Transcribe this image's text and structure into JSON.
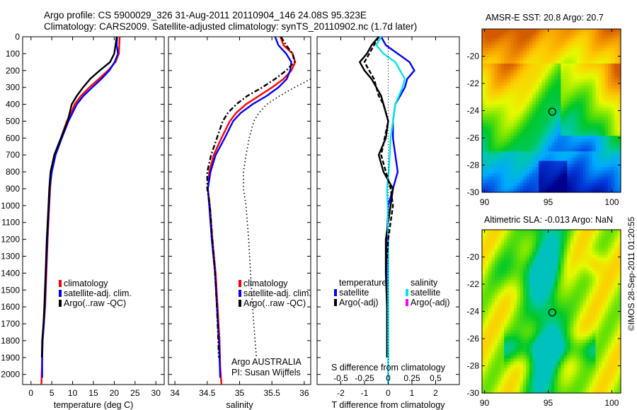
{
  "header": {
    "line1": "Argo profile: CS 5900029_326 31-Aug-2011 20110904_146 24.08S 95.323E",
    "line2": "Climatology: CARS2009. Satellite-adjusted climatology: synTS_20110902.nc (1.7d later)"
  },
  "credit": "©IMOS 28-Sep-2011 01:20:55",
  "colors": {
    "climatology": "#ff0000",
    "satellite": "#0000ff",
    "argo": "#000000",
    "sal_satellite": "#00e5ee",
    "sal_argo": "#ff00ff"
  },
  "chart_data": [
    {
      "type": "line",
      "name": "temperature-profile",
      "xlabel": "temperature (deg C)",
      "ylabel": "",
      "xlim": [
        -2,
        32
      ],
      "ylim": [
        2060,
        0
      ],
      "xticks": [
        0,
        5,
        10,
        15,
        20,
        25,
        30
      ],
      "yticks": [
        0,
        100,
        200,
        300,
        400,
        500,
        600,
        700,
        800,
        900,
        1000,
        1100,
        1200,
        1300,
        1400,
        1500,
        1600,
        1700,
        1800,
        1900,
        2000
      ],
      "legend": {
        "position": "center",
        "entries": [
          "climatology",
          "satellite-adj. clim.",
          "Argo(..raw -QC)"
        ]
      },
      "series": [
        {
          "name": "climatology",
          "color": "climatology",
          "style": "solid",
          "x": [
            21.3,
            21.2,
            21.1,
            20.3,
            18.5,
            16.3,
            14.0,
            12.0,
            10.5,
            9.7,
            8.6,
            7.2,
            5.6,
            4.9,
            4.6,
            4.4,
            4.0,
            3.7,
            3.4,
            3.1,
            2.8,
            2.7,
            2.5
          ],
          "y": [
            0,
            50,
            100,
            150,
            200,
            250,
            300,
            350,
            400,
            450,
            500,
            600,
            700,
            800,
            900,
            1000,
            1200,
            1400,
            1600,
            1700,
            1800,
            1900,
            2060
          ]
        },
        {
          "name": "satellite-adj. clim.",
          "color": "satellite",
          "style": "solid",
          "x": [
            20.7,
            20.6,
            20.9,
            20.1,
            18.8,
            16.9,
            14.7,
            12.6,
            11.0,
            10.0,
            9.0,
            7.4,
            5.9,
            5.0,
            4.5,
            4.3,
            3.9,
            3.6,
            3.3,
            3.1,
            2.8,
            2.7,
            2.7
          ],
          "y": [
            0,
            50,
            100,
            150,
            200,
            250,
            300,
            350,
            400,
            450,
            500,
            600,
            700,
            800,
            900,
            1000,
            1200,
            1400,
            1600,
            1700,
            1800,
            1900,
            2020
          ]
        },
        {
          "name": "Argo(..raw -QC)",
          "color": "argo",
          "style": "solid",
          "x": [
            20.6,
            20.3,
            20.0,
            19.0,
            16.5,
            14.2,
            12.5,
            11.0,
            9.8,
            9.3,
            8.8,
            7.2,
            5.6,
            4.7,
            4.4,
            4.2,
            3.8,
            3.5,
            3.2,
            3.0,
            2.7,
            2.6
          ],
          "y": [
            0,
            50,
            100,
            150,
            200,
            250,
            300,
            350,
            400,
            450,
            500,
            600,
            700,
            800,
            900,
            1000,
            1200,
            1400,
            1600,
            1700,
            1800,
            1900
          ]
        }
      ]
    },
    {
      "type": "line",
      "name": "salinity-profile",
      "xlabel": "salinity",
      "xlim": [
        33.9,
        36.1
      ],
      "ylim": [
        2060,
        0
      ],
      "xticks": [
        34,
        34.5,
        35,
        35.5,
        36
      ],
      "xtick_labels": [
        "34",
        "34.5",
        "35",
        "35.5",
        "36"
      ],
      "legend": {
        "position": "center",
        "entries": [
          "climatology",
          "satellite-adj. clim.",
          "Argo(..raw -QC)"
        ]
      },
      "annotation": [
        "Argo AUSTRALIA",
        "PI: Susan Wijffels"
      ],
      "series": [
        {
          "name": "climatology",
          "color": "climatology",
          "style": "solid",
          "x": [
            35.63,
            35.68,
            35.82,
            35.86,
            35.8,
            35.68,
            35.5,
            35.3,
            35.1,
            34.95,
            34.85,
            34.72,
            34.6,
            34.53,
            34.51,
            34.54,
            34.58,
            34.63,
            34.66,
            34.69,
            34.7,
            34.72
          ],
          "y": [
            0,
            50,
            100,
            150,
            200,
            250,
            300,
            350,
            400,
            450,
            500,
            600,
            700,
            800,
            900,
            1000,
            1200,
            1400,
            1600,
            1800,
            1950,
            2060
          ]
        },
        {
          "name": "satellite-adj. clim.",
          "color": "satellite",
          "style": "solid",
          "x": [
            35.55,
            35.6,
            35.72,
            35.8,
            35.78,
            35.73,
            35.6,
            35.42,
            35.2,
            35.02,
            34.9,
            34.77,
            34.63,
            34.55,
            34.51,
            34.53,
            34.57,
            34.62,
            34.65,
            34.68,
            34.7
          ],
          "y": [
            0,
            50,
            100,
            150,
            200,
            250,
            300,
            350,
            400,
            450,
            500,
            600,
            700,
            800,
            900,
            1000,
            1200,
            1400,
            1600,
            1800,
            2020
          ]
        },
        {
          "name": "Argo(..raw -QC)",
          "color": "argo",
          "style": "dashdot",
          "x": [
            35.64,
            35.72,
            35.82,
            35.85,
            35.72,
            35.55,
            35.35,
            35.12,
            34.95,
            34.82,
            34.74,
            34.65,
            34.56,
            34.5,
            34.5,
            34.54,
            34.58,
            34.62,
            34.65,
            34.67,
            34.68
          ],
          "y": [
            0,
            50,
            100,
            150,
            200,
            250,
            300,
            350,
            400,
            450,
            500,
            600,
            700,
            800,
            900,
            1000,
            1200,
            1400,
            1600,
            1800,
            1900
          ]
        },
        {
          "name": "reference",
          "color": "argo",
          "style": "dotted",
          "x": [
            36.1,
            35.85,
            35.62,
            35.42,
            35.3,
            35.22,
            35.15,
            35.1,
            35.06,
            35.06,
            35.1,
            35.14,
            35.17,
            35.2,
            35.22,
            35.24,
            35.26
          ],
          "y": [
            250,
            300,
            350,
            400,
            450,
            500,
            600,
            700,
            800,
            900,
            1000,
            1200,
            1400,
            1600,
            1700,
            1800,
            1900
          ]
        }
      ]
    },
    {
      "type": "line",
      "name": "difference-profile",
      "xlabel": "T difference from climatology",
      "xlabel2": "S difference from climatology",
      "xlim": [
        -3,
        3
      ],
      "ylim": [
        2060,
        0
      ],
      "xticks": [
        -2,
        -1,
        0,
        1,
        2
      ],
      "xticks2": [
        -0.5,
        -0.25,
        0,
        0.25,
        0.5
      ],
      "xtick2_labels": [
        "-0.5",
        "-0.25",
        "0",
        "0.25",
        "0.5"
      ],
      "legend": {
        "position": "center",
        "groups": [
          {
            "title": "temperature",
            "entries": [
              {
                "label": "satellite",
                "color": "satellite"
              },
              {
                "label": "Argo(-adj)",
                "color": "argo"
              }
            ]
          },
          {
            "title": "salinity",
            "entries": [
              {
                "label": "satellite",
                "color": "sal_satellite"
              },
              {
                "label": "Argo(-adj)",
                "color": "sal_argo"
              }
            ]
          }
        ]
      },
      "series": [
        {
          "name": "temperature satellite",
          "color": "satellite",
          "style": "solid",
          "x": [
            -0.3,
            -0.1,
            0.4,
            0.9,
            1.1,
            0.8,
            0.7,
            0.5,
            0.3,
            0.2,
            0.2,
            0.3,
            0.4,
            0.2,
            0.0,
            -0.05,
            -0.05,
            -0.02,
            0.0
          ],
          "y": [
            0,
            50,
            100,
            150,
            200,
            250,
            300,
            350,
            400,
            500,
            600,
            700,
            800,
            900,
            1000,
            1200,
            1400,
            1600,
            1900
          ]
        },
        {
          "name": "temperature Argo",
          "color": "argo",
          "style": "solid",
          "x": [
            -0.4,
            -0.7,
            -0.9,
            -1.2,
            -1.0,
            -0.7,
            -0.5,
            -0.3,
            -0.2,
            0.0,
            -0.1,
            -0.4,
            -0.2,
            0.2,
            0.1,
            -0.1,
            -0.1,
            -0.05,
            -0.05
          ],
          "y": [
            0,
            50,
            100,
            150,
            200,
            250,
            300,
            350,
            400,
            500,
            600,
            700,
            800,
            900,
            1000,
            1200,
            1400,
            1600,
            1900
          ]
        },
        {
          "name": "salinity satellite",
          "color": "sal_satellite",
          "style": "solid",
          "x": [
            -0.3,
            -0.5,
            -0.2,
            0.3,
            0.7,
            0.6,
            0.45,
            0.3,
            0.2,
            0.1,
            0.02,
            -0.05,
            -0.02,
            0.0,
            0.0,
            0.0,
            0.0
          ],
          "y": [
            0,
            50,
            100,
            150,
            250,
            300,
            350,
            400,
            500,
            600,
            800,
            900,
            1000,
            1200,
            1400,
            1600,
            2060
          ]
        },
        {
          "name": "salinity Argo",
          "color": "argo",
          "style": "dashed",
          "x": [
            -0.4,
            -0.8,
            -1.0,
            -0.8,
            -0.6,
            -0.5,
            -0.4,
            -0.2,
            0.0,
            -0.3,
            0.1,
            0.2,
            0.0,
            -0.1
          ],
          "y": [
            0,
            100,
            150,
            200,
            250,
            300,
            350,
            400,
            500,
            700,
            900,
            1000,
            1200,
            1400
          ]
        }
      ]
    },
    {
      "type": "heatmap",
      "name": "sst-map",
      "title": "AMSR-E SST: 20.8 Argo: 20.7",
      "xlim": [
        89.8,
        100.7
      ],
      "ylim": [
        -30,
        -18
      ],
      "xticks": [
        90,
        95,
        100
      ],
      "yticks": [
        -20,
        -22,
        -24,
        -26,
        -28,
        -30
      ],
      "marker": {
        "lon": 95.323,
        "lat": -24.08
      }
    },
    {
      "type": "heatmap",
      "name": "sla-map",
      "title": "Altimetric SLA: -0.013 Argo: NaN",
      "xlim": [
        89.8,
        100.7
      ],
      "ylim": [
        -30,
        -18
      ],
      "xticks": [
        90,
        95,
        100
      ],
      "yticks": [
        -20,
        -22,
        -24,
        -26,
        -28,
        -30
      ],
      "marker": {
        "lon": 95.323,
        "lat": -24.08
      }
    }
  ]
}
